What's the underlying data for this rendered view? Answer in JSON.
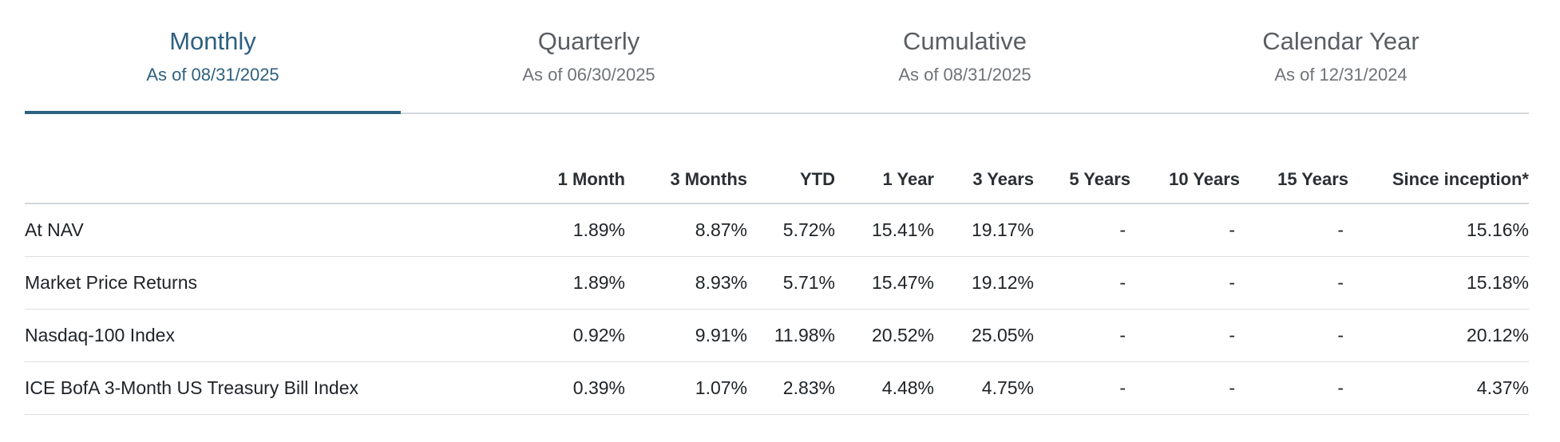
{
  "tabs": [
    {
      "label": "Monthly",
      "date": "As of 08/31/2025",
      "active": true
    },
    {
      "label": "Quarterly",
      "date": "As of 06/30/2025",
      "active": false
    },
    {
      "label": "Cumulative",
      "date": "As of 08/31/2025",
      "active": false
    },
    {
      "label": "Calendar Year",
      "date": "As of 12/31/2024",
      "active": false
    }
  ],
  "table": {
    "name_header": "",
    "columns": [
      "1 Month",
      "3 Months",
      "YTD",
      "1 Year",
      "3 Years",
      "5 Years",
      "10 Years",
      "15 Years",
      "Since inception*"
    ],
    "rows": [
      {
        "name": "At NAV",
        "values": [
          "1.89%",
          "8.87%",
          "5.72%",
          "15.41%",
          "19.17%",
          "-",
          "-",
          "-",
          "15.16%"
        ]
      },
      {
        "name": "Market Price Returns",
        "values": [
          "1.89%",
          "8.93%",
          "5.71%",
          "15.47%",
          "19.12%",
          "-",
          "-",
          "-",
          "15.18%"
        ]
      },
      {
        "name": "Nasdaq-100 Index",
        "values": [
          "0.92%",
          "9.91%",
          "11.98%",
          "20.52%",
          "25.05%",
          "-",
          "-",
          "-",
          "20.12%"
        ]
      },
      {
        "name": "ICE BofA 3-Month US Treasury Bill Index",
        "values": [
          "0.39%",
          "1.07%",
          "2.83%",
          "4.48%",
          "4.75%",
          "-",
          "-",
          "-",
          "4.37%"
        ]
      }
    ]
  },
  "colors": {
    "accent": "#2e6080",
    "divider": "#d4d7da",
    "text": "#1f2327",
    "muted": "#6f7377"
  }
}
